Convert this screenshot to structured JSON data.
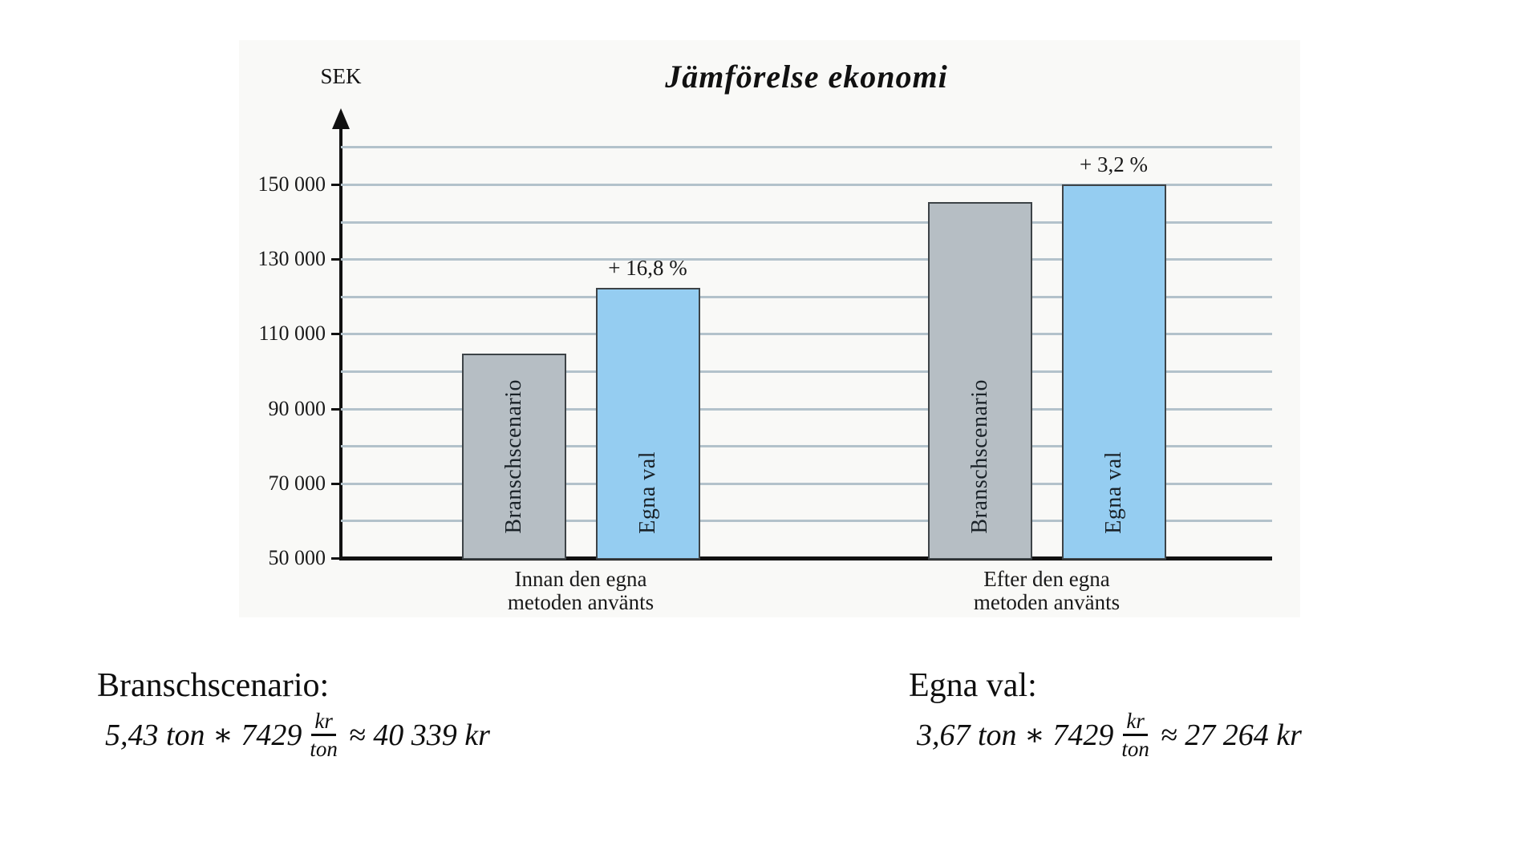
{
  "chart": {
    "title": "Jämförelse ekonomi",
    "y_axis_unit": "SEK"
  },
  "chart_data": {
    "type": "bar",
    "title": "Jämförelse ekonomi",
    "xlabel": "",
    "ylabel": "SEK",
    "ylim": [
      50000,
      165000
    ],
    "grid": "horizontal",
    "gridline_step": 10000,
    "legend_position": "none",
    "ytick_values": [
      150000,
      130000,
      110000,
      90000,
      70000,
      50000
    ],
    "ytick_labels": [
      "150 000",
      "130 000",
      "110 000",
      "90 000",
      "70 000",
      "50 000"
    ],
    "categories": [
      [
        "Innan den egna",
        "metoden använts"
      ],
      [
        "Efter den egna",
        "metoden använts"
      ]
    ],
    "series": [
      {
        "name": "Branschscenario",
        "color_key": "bar_gray",
        "values": [
          104700,
          145300
        ],
        "annotations": [
          null,
          null
        ]
      },
      {
        "name": "Egna val",
        "color_key": "bar_blue",
        "values": [
          122300,
          150000
        ],
        "annotations": [
          "+ 16,8 %",
          "+ 3,2 %"
        ]
      }
    ]
  },
  "formulas": {
    "left": {
      "heading": "Branschscenario:",
      "expr_pre": "5,43 ton ∗ 7429",
      "frac_num": "kr",
      "frac_den": "ton",
      "expr_post": "≈ 40 339 kr"
    },
    "right": {
      "heading": "Egna val:",
      "expr_pre": "3,67 ton ∗ 7429",
      "frac_num": "kr",
      "frac_den": "ton",
      "expr_post": "≈ 27 264 kr"
    }
  },
  "colors": {
    "bar_gray": "#b6bec4",
    "bar_blue": "#95cdf1",
    "bar_border": "#3d4347",
    "gridline": "#b3c2cb",
    "axis": "#111111",
    "panel_bg": "#f9f9f7",
    "text": "#1c1c1c"
  }
}
